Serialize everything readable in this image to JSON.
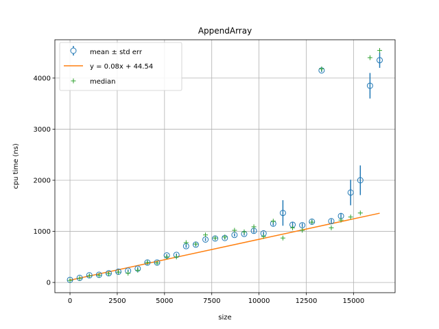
{
  "chart_data": {
    "type": "scatter",
    "title": "AppendArray",
    "xlabel": "size",
    "ylabel": "cpu time (ns)",
    "xlim": [
      -800,
      17200
    ],
    "ylim": [
      -200,
      4750
    ],
    "xticks": [
      0,
      2500,
      5000,
      7500,
      10000,
      12500,
      15000
    ],
    "xtick_labels": [
      "0",
      "2500",
      "5000",
      "7500",
      "10000",
      "12500",
      "15000"
    ],
    "yticks": [
      0,
      1000,
      2000,
      3000,
      4000
    ],
    "ytick_labels": [
      "0",
      "1000",
      "2000",
      "3000",
      "4000"
    ],
    "grid": true,
    "legend_position": "top-left",
    "series": [
      {
        "name": "mean ± std err",
        "kind": "errorbar",
        "color": "#1f77b4",
        "x": [
          0,
          512,
          1024,
          1536,
          2048,
          2560,
          3072,
          3584,
          4096,
          4608,
          5120,
          5632,
          6144,
          6656,
          7168,
          7680,
          8192,
          8704,
          9216,
          9728,
          10240,
          10752,
          11264,
          11776,
          12288,
          12800,
          13312,
          13824,
          14336,
          14848,
          15360,
          15872,
          16384
        ],
        "y": [
          50,
          90,
          140,
          150,
          180,
          210,
          230,
          270,
          390,
          390,
          530,
          540,
          710,
          740,
          840,
          860,
          870,
          930,
          950,
          1010,
          960,
          1150,
          1360,
          1130,
          1120,
          1190,
          4150,
          1200,
          1300,
          1760,
          2000,
          3850,
          4350
        ],
        "err": [
          15,
          15,
          20,
          20,
          20,
          20,
          25,
          30,
          25,
          25,
          25,
          25,
          30,
          30,
          30,
          30,
          30,
          30,
          30,
          40,
          30,
          40,
          250,
          50,
          40,
          40,
          30,
          40,
          50,
          250,
          290,
          250,
          150
        ]
      },
      {
        "name": "y = 0.08x + 44.54",
        "kind": "line",
        "color": "#ff7f0e",
        "slope": 0.08,
        "intercept": 44.54,
        "x_range": [
          0,
          16384
        ]
      },
      {
        "name": "median",
        "kind": "scatter",
        "color": "#2ca02c",
        "x": [
          0,
          512,
          1024,
          1536,
          2048,
          2560,
          3072,
          3584,
          4096,
          4608,
          5120,
          5632,
          6144,
          6656,
          7168,
          7680,
          8192,
          8704,
          9216,
          9728,
          10240,
          10752,
          11264,
          11776,
          12288,
          12800,
          13312,
          13824,
          14336,
          14848,
          15360,
          15872,
          16384
        ],
        "y": [
          40,
          80,
          130,
          140,
          170,
          200,
          180,
          240,
          390,
          380,
          500,
          500,
          780,
          750,
          930,
          870,
          890,
          1020,
          990,
          1090,
          900,
          1200,
          870,
          1070,
          1020,
          1180,
          4180,
          1070,
          1220,
          1280,
          1360,
          4400,
          4540
        ]
      }
    ]
  }
}
